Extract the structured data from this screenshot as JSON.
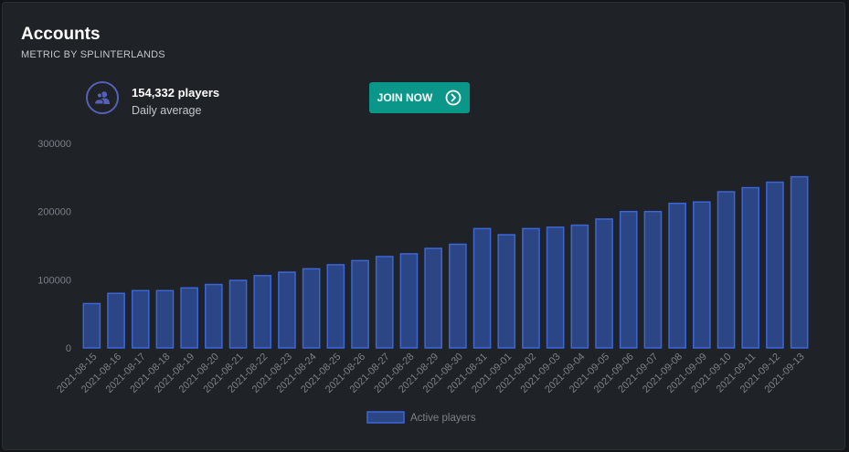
{
  "card": {
    "title": "Accounts",
    "subtitle": "METRIC BY SPLINTERLANDS"
  },
  "stat": {
    "icon": "users-icon",
    "value": "154,332 players",
    "label": "Daily average"
  },
  "join_button": {
    "label": "JOIN NOW",
    "icon": "chevron-right-circle-icon"
  },
  "colors": {
    "bar_fill": "#2b4585",
    "bar_stroke": "#3c66d8",
    "button": "#0a9688",
    "icon_ring": "#5561b8"
  },
  "chart_data": {
    "type": "bar",
    "title": "",
    "xlabel": "",
    "ylabel": "",
    "ylim": [
      0,
      300000
    ],
    "yticks": [
      0,
      100000,
      200000,
      300000
    ],
    "grid": false,
    "legend": "bottom",
    "categories": [
      "2021-08-15",
      "2021-08-16",
      "2021-08-17",
      "2021-08-18",
      "2021-08-19",
      "2021-08-20",
      "2021-08-21",
      "2021-08-22",
      "2021-08-23",
      "2021-08-24",
      "2021-08-25",
      "2021-08-26",
      "2021-08-27",
      "2021-08-28",
      "2021-08-29",
      "2021-08-30",
      "2021-08-31",
      "2021-09-01",
      "2021-09-02",
      "2021-09-03",
      "2021-09-04",
      "2021-09-05",
      "2021-09-06",
      "2021-09-07",
      "2021-09-08",
      "2021-09-09",
      "2021-09-10",
      "2021-09-11",
      "2021-09-12",
      "2021-09-13"
    ],
    "series": [
      {
        "name": "Active players",
        "values": [
          65000,
          80000,
          84000,
          84000,
          88000,
          93000,
          99000,
          106000,
          111000,
          116000,
          122000,
          128000,
          134000,
          138000,
          146000,
          152000,
          175000,
          166000,
          175000,
          177000,
          180000,
          189000,
          200000,
          200000,
          212000,
          214000,
          229000,
          235000,
          243000,
          251000
        ]
      }
    ]
  }
}
